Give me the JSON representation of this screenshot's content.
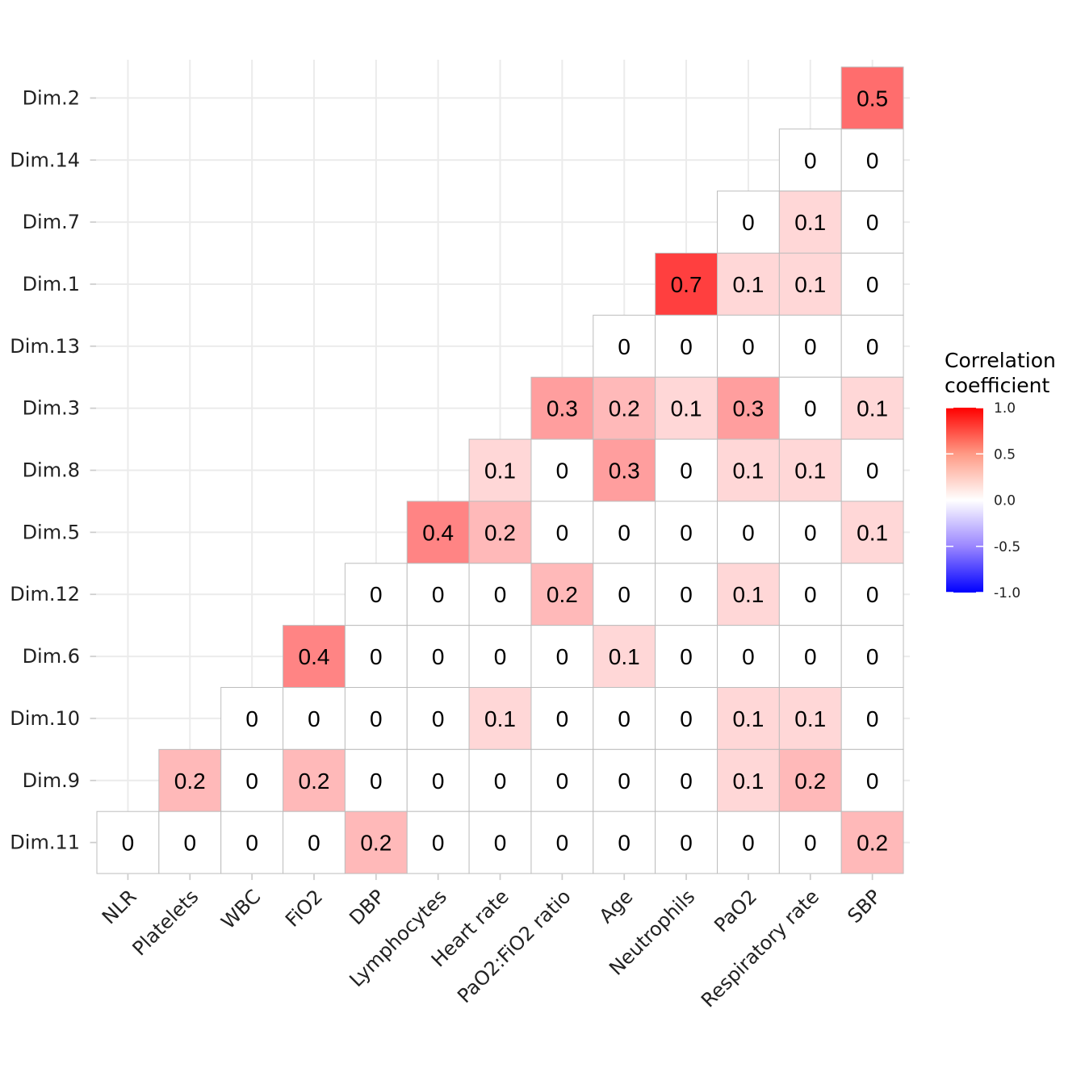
{
  "chart_data": {
    "type": "heatmap",
    "x_categories": [
      "NLR",
      "Platelets",
      "WBC",
      "FiO2",
      "DBP",
      "Lymphocytes",
      "Heart rate",
      "PaO2:FiO2 ratio",
      "Age",
      "Neutrophils",
      "PaO2",
      "Respiratory rate",
      "SBP"
    ],
    "y_categories": [
      "Dim.2",
      "Dim.14",
      "Dim.7",
      "Dim.1",
      "Dim.13",
      "Dim.3",
      "Dim.8",
      "Dim.5",
      "Dim.12",
      "Dim.6",
      "Dim.10",
      "Dim.9",
      "Dim.11"
    ],
    "values": [
      [
        null,
        null,
        null,
        null,
        null,
        null,
        null,
        null,
        null,
        null,
        null,
        null,
        0.5
      ],
      [
        null,
        null,
        null,
        null,
        null,
        null,
        null,
        null,
        null,
        null,
        null,
        0,
        0
      ],
      [
        null,
        null,
        null,
        null,
        null,
        null,
        null,
        null,
        null,
        null,
        0,
        0.1,
        0
      ],
      [
        null,
        null,
        null,
        null,
        null,
        null,
        null,
        null,
        null,
        0.7,
        0.1,
        0.1,
        0
      ],
      [
        null,
        null,
        null,
        null,
        null,
        null,
        null,
        null,
        0,
        0,
        0,
        0,
        0
      ],
      [
        null,
        null,
        null,
        null,
        null,
        null,
        null,
        0.3,
        0.2,
        0.1,
        0.3,
        0,
        0.1
      ],
      [
        null,
        null,
        null,
        null,
        null,
        null,
        0.1,
        0,
        0.3,
        0,
        0.1,
        0.1,
        0
      ],
      [
        null,
        null,
        null,
        null,
        null,
        0.4,
        0.2,
        0,
        0,
        0,
        0,
        0,
        0.1
      ],
      [
        null,
        null,
        null,
        null,
        0,
        0,
        0,
        0.2,
        0,
        0,
        0.1,
        0,
        0
      ],
      [
        null,
        null,
        null,
        0.4,
        0,
        0,
        0,
        0,
        0.1,
        0,
        0,
        0,
        0
      ],
      [
        null,
        null,
        0,
        0,
        0,
        0,
        0.1,
        0,
        0,
        0,
        0.1,
        0.1,
        0
      ],
      [
        null,
        0.2,
        0,
        0.2,
        0,
        0,
        0,
        0,
        0,
        0,
        0.1,
        0.2,
        0
      ],
      [
        0,
        0,
        0,
        0,
        0.2,
        0,
        0,
        0,
        0,
        0,
        0,
        0,
        0.2
      ]
    ],
    "value_labels": [
      [
        null,
        null,
        null,
        null,
        null,
        null,
        null,
        null,
        null,
        null,
        null,
        null,
        "0.5"
      ],
      [
        null,
        null,
        null,
        null,
        null,
        null,
        null,
        null,
        null,
        null,
        null,
        "0",
        "0"
      ],
      [
        null,
        null,
        null,
        null,
        null,
        null,
        null,
        null,
        null,
        null,
        "0",
        "0.1",
        "0"
      ],
      [
        null,
        null,
        null,
        null,
        null,
        null,
        null,
        null,
        null,
        "0.7",
        "0.1",
        "0.1",
        "0"
      ],
      [
        null,
        null,
        null,
        null,
        null,
        null,
        null,
        null,
        "0",
        "0",
        "0",
        "0",
        "0"
      ],
      [
        null,
        null,
        null,
        null,
        null,
        null,
        null,
        "0.3",
        "0.2",
        "0.1",
        "0.3",
        "0",
        "0.1"
      ],
      [
        null,
        null,
        null,
        null,
        null,
        null,
        "0.1",
        "0",
        "0.3",
        "0",
        "0.1",
        "0.1",
        "0"
      ],
      [
        null,
        null,
        null,
        null,
        null,
        "0.4",
        "0.2",
        "0",
        "0",
        "0",
        "0",
        "0",
        "0.1"
      ],
      [
        null,
        null,
        null,
        null,
        "0",
        "0",
        "0",
        "0.2",
        "0",
        "0",
        "0.1",
        "0",
        "0"
      ],
      [
        null,
        null,
        null,
        "0.4",
        "0",
        "0",
        "0",
        "0",
        "0.1",
        "0",
        "0",
        "0",
        "0"
      ],
      [
        null,
        null,
        "0",
        "0",
        "0",
        "0",
        "0.1",
        "0",
        "0",
        "0",
        "0.1",
        "0.1",
        "0"
      ],
      [
        null,
        "0.2",
        "0",
        "0.2",
        "0",
        "0",
        "0",
        "0",
        "0",
        "0",
        "0.1",
        "0.2",
        "0"
      ],
      [
        "0",
        "0",
        "0",
        "0",
        "0.2",
        "0",
        "0",
        "0",
        "0",
        "0",
        "0",
        "0",
        "0.2"
      ]
    ],
    "legend": {
      "title_lines": [
        "Correlation",
        "coefficient"
      ],
      "ticks": [
        1.0,
        0.5,
        0.0,
        -0.5,
        -1.0
      ],
      "tick_labels": [
        "1.0",
        "0.5",
        "0.0",
        "-0.5",
        "-1.0"
      ],
      "range": [
        -1,
        1
      ],
      "placement": "right"
    },
    "color_scale": {
      "low": "#0000ff",
      "mid": "#ffffff",
      "high": "#ff0000"
    },
    "grid": true
  }
}
